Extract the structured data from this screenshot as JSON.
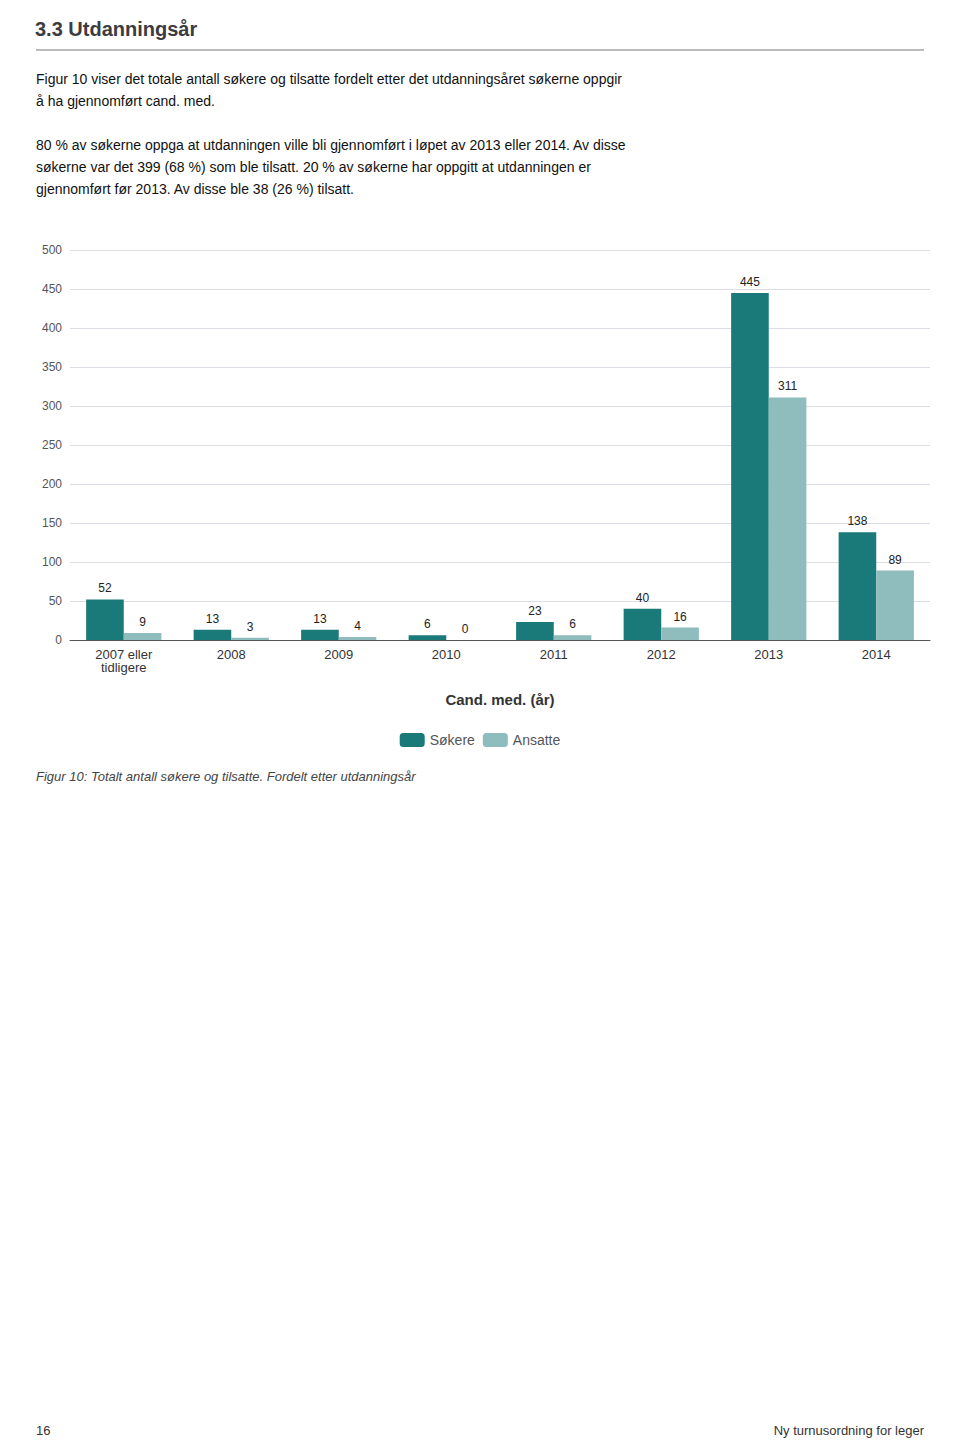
{
  "chart_data": {
    "type": "bar",
    "title": "3.3 Utdanningsår",
    "subtitle": "Figur 10 viser det totale antall søkere og tilsatte fordelt etter det utdanningsåret søkerne oppgir\nå ha gjennomført cand. med.\n\n80 % av søkerne oppga at utdanningen ville bli gjennomført i løpet av 2013 eller 2014. Av disse\nsøkerne var det 399 (68 %) som ble tilsatt. 20 % av søkerne har oppgitt at utdanningen er\ngjennomført før 2013. Av disse ble 38 (26 %) tilsatt.",
    "annotations": [
      "Figur 10: Totalt antall søkere og tilsatte. Fordelt etter utdanningsår",
      "16",
      "Ny turnusordning for leger"
    ],
    "xlabel": "Cand. med. (år)",
    "categories": [
      "2007 eller\ntidligere",
      "2008",
      "2009",
      "2010",
      "2011",
      "2012",
      "2013",
      "2014"
    ],
    "series": [
      {
        "name": "Søkere",
        "color": "#1a7a7a",
        "values": [
          52,
          13,
          13,
          6,
          23,
          40,
          445,
          138
        ]
      },
      {
        "name": "Ansatte",
        "color": "#8fbcbc",
        "values": [
          9,
          3,
          4,
          0,
          6,
          16,
          311,
          89
        ]
      }
    ],
    "ylim": [
      0,
      500
    ],
    "yticks": [
      0,
      50,
      100,
      150,
      200,
      250,
      300,
      350,
      400,
      450,
      500
    ],
    "grid": true,
    "legend": "bottom",
    "data_labels": true
  }
}
